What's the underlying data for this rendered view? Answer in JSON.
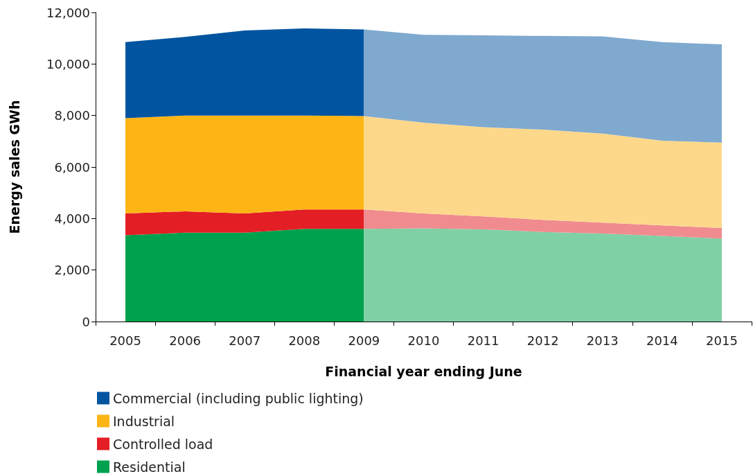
{
  "chart_data": {
    "type": "area",
    "stacked": true,
    "xlabel": "Financial year ending June",
    "ylabel": "Energy sales GWh",
    "categories": [
      "2005",
      "2006",
      "2007",
      "2008",
      "2009",
      "2010",
      "2011",
      "2012",
      "2013",
      "2014",
      "2015"
    ],
    "ylim": [
      0,
      12000
    ],
    "yticks": [
      0,
      {
        "value": 2000,
        "label": "2,000"
      },
      {
        "value": 4000,
        "label": "4,000"
      },
      {
        "value": 6000,
        "label": "6,000"
      },
      {
        "value": 8000,
        "label": "8,000"
      },
      {
        "value": 10000,
        "label": "10,000"
      },
      {
        "value": 12000,
        "label": "12,000"
      }
    ],
    "grid": false,
    "legend": "bottom left",
    "series": [
      {
        "name": "Residential",
        "colors": [
          "#00a14e",
          "#00a14e",
          "#00a14e",
          "#00a14e",
          "#80d0a6",
          "#80d0a6",
          "#80d0a6",
          "#80d0a6",
          "#80d0a6",
          "#80d0a6",
          "#80d0a6"
        ],
        "values": [
          3350,
          3450,
          3450,
          3600,
          3600,
          3620,
          3580,
          3480,
          3420,
          3320,
          3220
        ]
      },
      {
        "name": "Controlled load",
        "colors": [
          "#e31e24",
          "#e31e24",
          "#e31e24",
          "#e31e24",
          "#f08b8f",
          "#f08b8f",
          "#f08b8f",
          "#f08b8f",
          "#f08b8f",
          "#f08b8f",
          "#f08b8f"
        ],
        "values": [
          850,
          830,
          750,
          750,
          750,
          580,
          500,
          470,
          420,
          410,
          410
        ]
      },
      {
        "name": "Industrial",
        "colors": [
          "#fdb515",
          "#fdb515",
          "#fdb515",
          "#fdb515",
          "#fdd88a",
          "#fdd88a",
          "#fdd88a",
          "#fdd88a",
          "#fdd88a",
          "#fdd88a",
          "#fdd88a"
        ],
        "values": [
          3700,
          3720,
          3800,
          3650,
          3630,
          3520,
          3470,
          3500,
          3460,
          3290,
          3320
        ]
      },
      {
        "name": "Commercial (including public lighting)",
        "colors": [
          "#0054a0",
          "#0054a0",
          "#0054a0",
          "#0054a0",
          "#7fa9cf",
          "#7fa9cf",
          "#7fa9cf",
          "#7fa9cf",
          "#7fa9cf",
          "#7fa9cf",
          "#7fa9cf"
        ],
        "values": [
          2950,
          3050,
          3300,
          3380,
          3360,
          3410,
          3560,
          3640,
          3770,
          3830,
          3810
        ]
      }
    ]
  }
}
